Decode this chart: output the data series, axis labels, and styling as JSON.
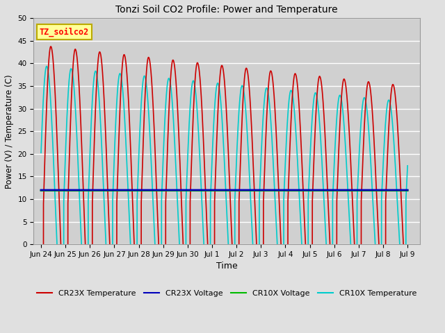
{
  "title": "Tonzi Soil CO2 Profile: Power and Temperature",
  "xlabel": "Time",
  "ylabel": "Power (V) / Temperature (C)",
  "ylim": [
    0,
    50
  ],
  "yticks": [
    0,
    5,
    10,
    15,
    20,
    25,
    30,
    35,
    40,
    45,
    50
  ],
  "xlim_start": -0.3,
  "xlim_end": 15.5,
  "x_tick_labels": [
    "Jun 24",
    "Jun 25",
    "Jun 26",
    "Jun 27",
    "Jun 28",
    "Jun 29",
    "Jun 30",
    "Jul 1",
    "Jul 2",
    "Jul 3",
    "Jul 4",
    "Jul 5",
    "Jul 6",
    "Jul 7",
    "Jul 8",
    "Jul 9"
  ],
  "x_tick_positions": [
    0,
    1,
    2,
    3,
    4,
    5,
    6,
    7,
    8,
    9,
    10,
    11,
    12,
    13,
    14,
    15
  ],
  "cr23x_temp_color": "#cc0000",
  "cr23x_volt_color": "#0000bb",
  "cr10x_volt_color": "#00bb00",
  "cr10x_temp_color": "#00cccc",
  "bg_color": "#e0e0e0",
  "plot_bg_color": "#d0d0d0",
  "grid_color": "#ffffff",
  "annotation_text": "TZ_soilco2",
  "annotation_bg": "#ffff99",
  "annotation_border": "#bbaa00",
  "voltage_cr23x": 12.0,
  "voltage_cr10x": 11.9,
  "legend_entries": [
    "CR23X Temperature",
    "CR23X Voltage",
    "CR10X Voltage",
    "CR10X Temperature"
  ],
  "legend_colors": [
    "#cc0000",
    "#0000bb",
    "#00bb00",
    "#00cccc"
  ],
  "figwidth": 6.4,
  "figheight": 4.8,
  "dpi": 100
}
